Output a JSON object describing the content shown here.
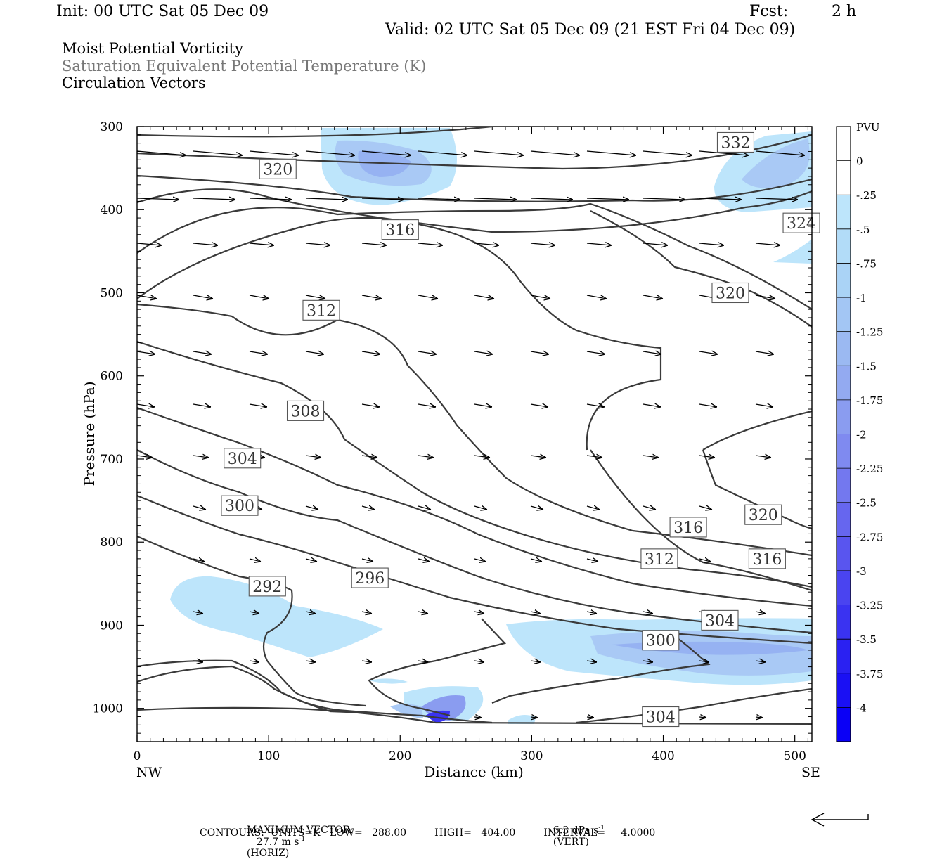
{
  "header": {
    "init": "Init: 00 UTC Sat 05 Dec 09",
    "fcst_label": "Fcst:",
    "fcst_value": "2 h",
    "valid": "Valid: 02 UTC Sat 05 Dec 09 (21 EST Fri 04 Dec 09)"
  },
  "fields": [
    "Moist Potential Vorticity",
    "Saturation Equivalent Potential Temperature (K)",
    "Circulation Vectors"
  ],
  "footer": {
    "max_vector_label": "MAXIMUM VECTOR:",
    "max_vector_horiz": "27.7 m s",
    "horiz_suffix": "(HORIZ)",
    "max_vector_vert": "6.3 dPa s",
    "vert_suffix": "(VERT)",
    "exponent": "-1",
    "contours": "CONTOURS:  UNITS=K   LOW=   288.00         HIGH=   404.00         INTERVAL=     4.0000"
  },
  "colorbar": {
    "title": "PVU",
    "ticks": [
      "0",
      "-.25",
      "-.5",
      "-.75",
      "-1",
      "-1.25",
      "-1.5",
      "-1.75",
      "-2",
      "-2.25",
      "-2.5",
      "-2.75",
      "-3",
      "-3.25",
      "-3.5",
      "-3.75",
      "-4"
    ],
    "colors": [
      "#ffffff",
      "#ffffff",
      "#bde5fb",
      "#b2dcf8",
      "#aad3f6",
      "#a3c6f4",
      "#9bb9f2",
      "#93aaf1",
      "#8a9cf0",
      "#7f8af0",
      "#7378ef",
      "#6666ef",
      "#5955ef",
      "#4a44f0",
      "#3a33f1",
      "#2a21f2",
      "#1a10f4",
      "#0a00f6"
    ]
  },
  "colors": {
    "contour": "#3a3a3a",
    "frame": "#000000",
    "shade_light": "#bde5fb",
    "shade_mid": "#a9c9f5",
    "shade_deep": "#4f4ff0"
  },
  "chart_data": {
    "type": "contour",
    "ylabel": "Pressure (hPa)",
    "xlabel": "Distance (km)",
    "x_left_label": "NW",
    "x_right_label": "SE",
    "xlim": [
      0,
      513
    ],
    "ylim": [
      300,
      1040
    ],
    "x_ticks": [
      0,
      100,
      200,
      300,
      400,
      500
    ],
    "y_ticks": [
      300,
      400,
      500,
      600,
      700,
      800,
      900,
      1000
    ],
    "contour_labels": [
      {
        "text": "332",
        "x": 455,
        "p": 319
      },
      {
        "text": "320",
        "x": 107,
        "p": 351
      },
      {
        "text": "316",
        "x": 200,
        "p": 424
      },
      {
        "text": "324",
        "x": 505,
        "p": 416
      },
      {
        "text": "320",
        "x": 451,
        "p": 500
      },
      {
        "text": "312",
        "x": 140,
        "p": 521
      },
      {
        "text": "308",
        "x": 128,
        "p": 642
      },
      {
        "text": "304",
        "x": 80,
        "p": 699
      },
      {
        "text": "300",
        "x": 78,
        "p": 756
      },
      {
        "text": "316",
        "x": 419,
        "p": 782
      },
      {
        "text": "320",
        "x": 476,
        "p": 767
      },
      {
        "text": "312",
        "x": 397,
        "p": 820
      },
      {
        "text": "316",
        "x": 479,
        "p": 820
      },
      {
        "text": "292",
        "x": 99,
        "p": 853
      },
      {
        "text": "296",
        "x": 177,
        "p": 843
      },
      {
        "text": "304",
        "x": 443,
        "p": 894
      },
      {
        "text": "300",
        "x": 398,
        "p": 918
      },
      {
        "text": "304",
        "x": 398,
        "p": 1010
      }
    ]
  }
}
